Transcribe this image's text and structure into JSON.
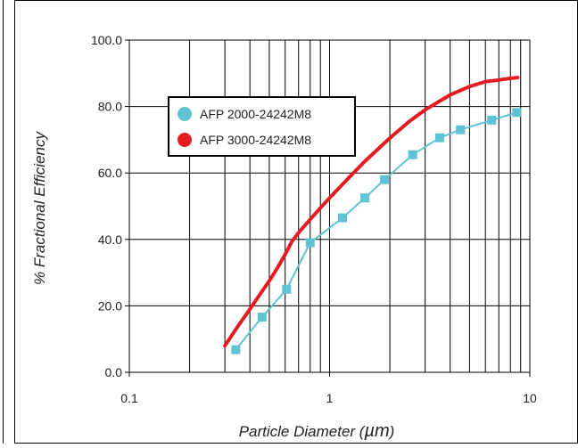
{
  "chart_data": {
    "type": "line",
    "title": "",
    "xlabel": "Particle Diameter (",
    "xlabel_unit": "µm",
    "xlabel_close": ")",
    "ylabel": "% Fractional Efficiency",
    "x_scale": "log",
    "xlim": [
      0.1,
      10
    ],
    "ylim": [
      0,
      100
    ],
    "x_ticks": [
      0.1,
      1,
      10
    ],
    "x_tick_labels": [
      "0.1",
      "1",
      "10"
    ],
    "y_ticks": [
      0,
      20,
      40,
      60,
      80,
      100
    ],
    "y_tick_labels": [
      "0.0",
      "20.0",
      "40.0",
      "60.0",
      "80.0",
      "100.0"
    ],
    "grid": true,
    "legend_position": "upper-left inside plot",
    "series": [
      {
        "name": "AFP 2000-24242M8",
        "color": "#5fc3d6",
        "marker": "square",
        "x": [
          0.34,
          0.46,
          0.61,
          0.8,
          1.16,
          1.5,
          1.88,
          2.6,
          3.55,
          4.5,
          6.45,
          8.6
        ],
        "y": [
          6.8,
          16.6,
          25.0,
          39.0,
          46.5,
          52.5,
          58.0,
          65.5,
          70.6,
          73.0,
          75.9,
          78.2
        ]
      },
      {
        "name": "AFP 3000-24242M8",
        "color": "#e31b23",
        "marker": "none",
        "x": [
          0.3,
          0.35,
          0.4,
          0.45,
          0.5,
          0.55,
          0.6,
          0.65,
          0.7,
          0.8,
          0.9,
          1.0,
          1.2,
          1.5,
          2.0,
          2.5,
          3.0,
          4.0,
          5.0,
          6.0,
          7.0,
          8.0,
          8.7
        ],
        "y": [
          8.0,
          14.0,
          19.0,
          23.5,
          27.5,
          31.5,
          35.5,
          39.5,
          42.0,
          46.0,
          49.5,
          52.5,
          57.5,
          63.5,
          70.5,
          75.5,
          79.0,
          83.5,
          86.0,
          87.5,
          88.0,
          88.5,
          88.7
        ]
      }
    ]
  }
}
